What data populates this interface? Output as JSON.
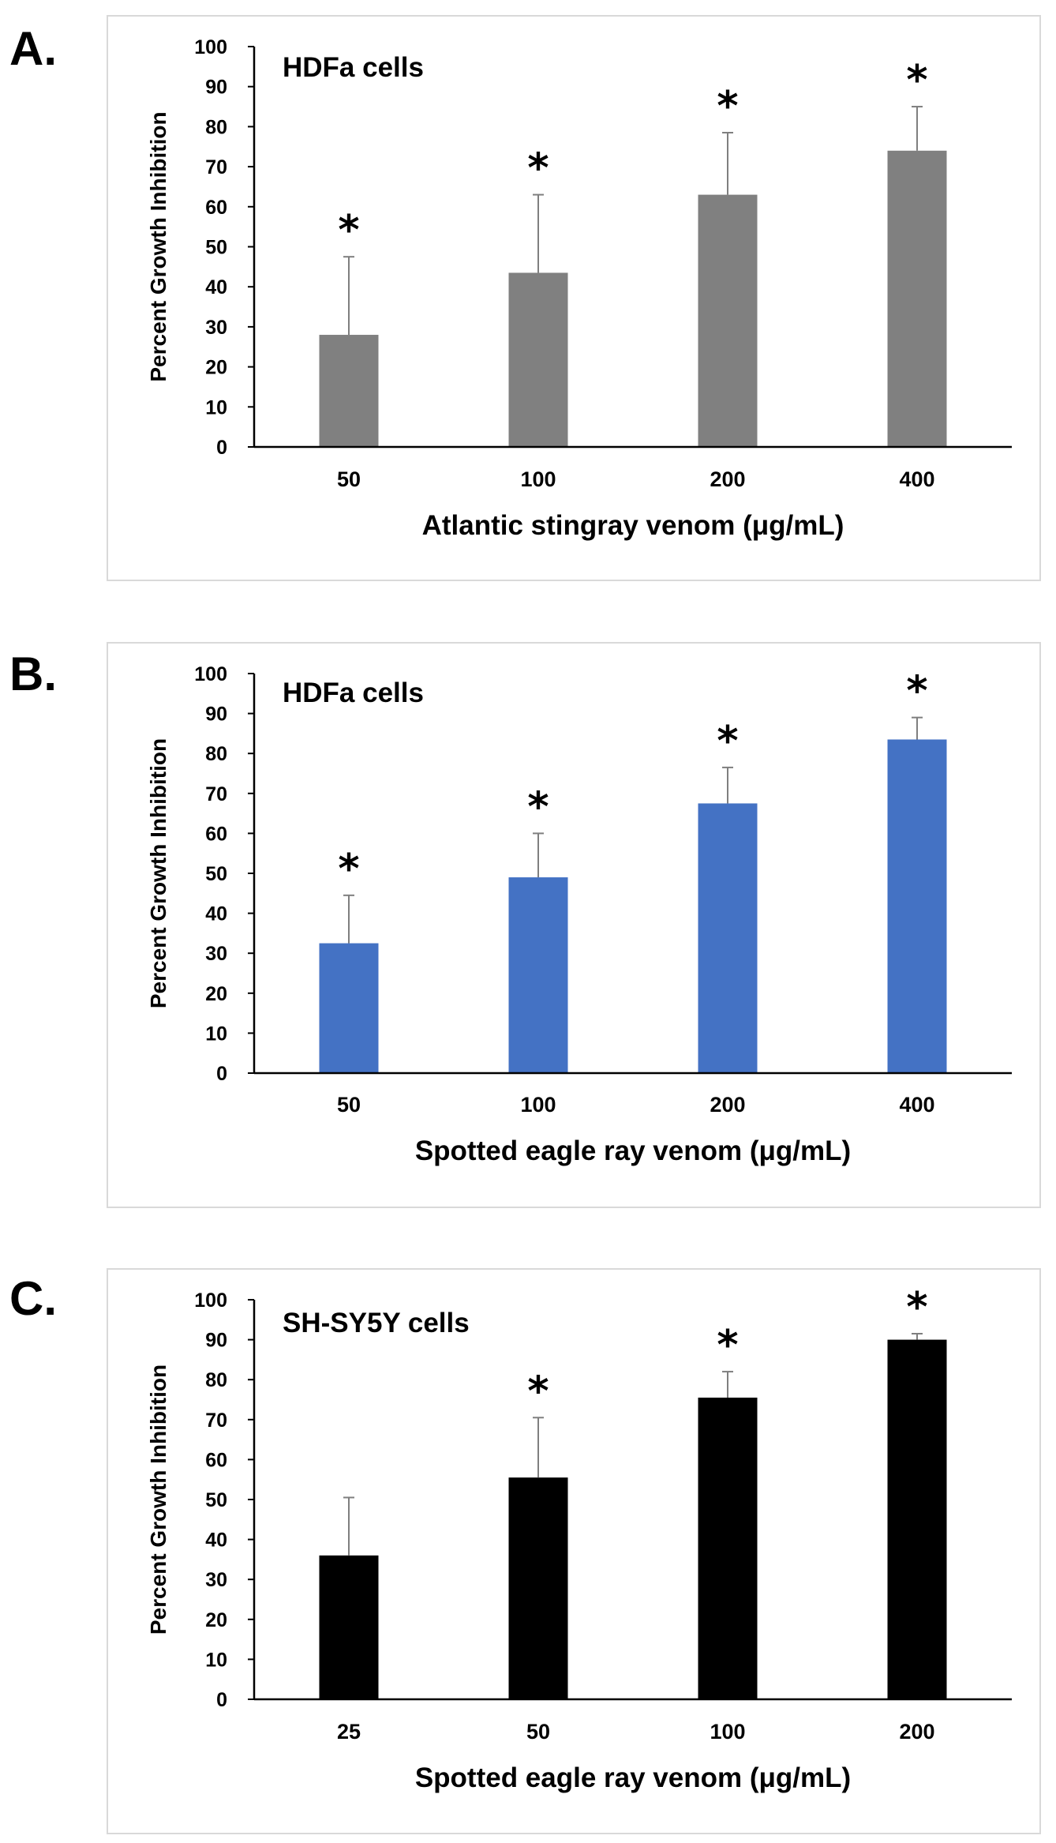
{
  "chart_data": [
    {
      "type": "bar",
      "panel": "A.",
      "title": "HDFa cells",
      "categories": [
        "50",
        "100",
        "200",
        "400"
      ],
      "values": [
        28,
        43.5,
        63,
        74
      ],
      "errors": [
        19.5,
        19.5,
        15.5,
        11
      ],
      "significant": [
        "*",
        "*",
        "*",
        "*"
      ],
      "xlabel": "Atlantic stingray venom (μg/mL)",
      "ylabel": "Percent Growth Inhibition",
      "ylim": [
        0,
        100
      ],
      "yticks": [
        "0",
        "10",
        "20",
        "30",
        "40",
        "50",
        "60",
        "70",
        "80",
        "90",
        "100"
      ],
      "bar_color": "#808080"
    },
    {
      "type": "bar",
      "panel": "B.",
      "title": "HDFa cells",
      "categories": [
        "50",
        "100",
        "200",
        "400"
      ],
      "values": [
        32.5,
        49,
        67.5,
        83.5
      ],
      "errors": [
        12,
        11,
        9,
        5.5
      ],
      "significant": [
        "*",
        "*",
        "*",
        "*"
      ],
      "xlabel": "Spotted eagle ray venom (μg/mL)",
      "ylabel": "Percent Growth Inhibition",
      "ylim": [
        0,
        100
      ],
      "yticks": [
        "0",
        "10",
        "20",
        "30",
        "40",
        "50",
        "60",
        "70",
        "80",
        "90",
        "100"
      ],
      "bar_color": "#4472c4"
    },
    {
      "type": "bar",
      "panel": "C.",
      "title": "SH-SY5Y cells",
      "categories": [
        "25",
        "50",
        "100",
        "200"
      ],
      "values": [
        36,
        55.5,
        75.5,
        90
      ],
      "errors": [
        14.5,
        15,
        6.5,
        1.5
      ],
      "significant": [
        "",
        "*",
        "*",
        "*"
      ],
      "xlabel": "Spotted eagle ray venom (μg/mL)",
      "ylabel": "Percent Growth Inhibition",
      "ylim": [
        0,
        100
      ],
      "yticks": [
        "0",
        "10",
        "20",
        "30",
        "40",
        "50",
        "60",
        "70",
        "80",
        "90",
        "100"
      ],
      "bar_color": "#000000"
    }
  ]
}
